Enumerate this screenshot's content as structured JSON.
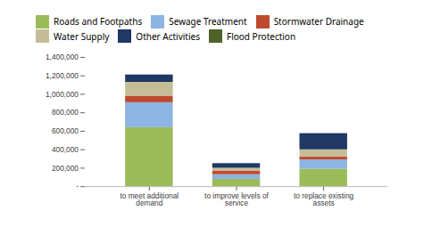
{
  "chart_data": {
    "type": "bar",
    "stacked": true,
    "categories": [
      "to meet additional\ndemand",
      "to improve levels of\nservice",
      "to replace existing\nassets"
    ],
    "series": [
      {
        "name": "Roads and Footpaths",
        "color": "#9BBB59",
        "values": [
          640000,
          80000,
          190000
        ]
      },
      {
        "name": "Sewage Treatment",
        "color": "#8DB4E2",
        "values": [
          270000,
          50000,
          100000
        ]
      },
      {
        "name": "Stormwater Drainage",
        "color": "#BE4B2E",
        "values": [
          70000,
          40000,
          30000
        ]
      },
      {
        "name": "Water Supply",
        "color": "#C4BD97",
        "values": [
          150000,
          30000,
          80000
        ]
      },
      {
        "name": "Other Activities",
        "color": "#1F3864",
        "values": [
          80000,
          50000,
          175000
        ]
      },
      {
        "name": "Flood Protection",
        "color": "#4F6228",
        "values": [
          0,
          0,
          0
        ]
      }
    ],
    "ylim": [
      0,
      1400000
    ],
    "yticks": [
      {
        "value": 0,
        "label": "-"
      },
      {
        "value": 200000,
        "label": "200,000"
      },
      {
        "value": 400000,
        "label": "400,000"
      },
      {
        "value": 600000,
        "label": "600,000"
      },
      {
        "value": 800000,
        "label": "800,000"
      },
      {
        "value": 1000000,
        "label": "1,000,000"
      },
      {
        "value": 1200000,
        "label": "1,200,000"
      },
      {
        "value": 1400000,
        "label": "1,400,000"
      }
    ],
    "grid": false,
    "legend": "top"
  }
}
